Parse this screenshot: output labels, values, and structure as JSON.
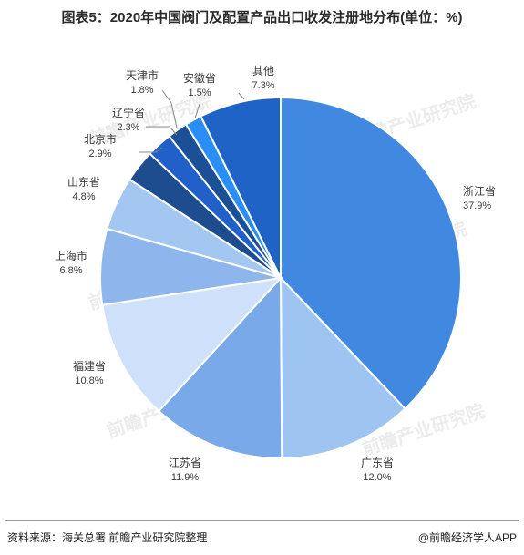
{
  "chart_data": {
    "type": "pie",
    "title": "图表5：2020年中国阀门及配置产品出口收发注册地分布(单位：%)",
    "categories": [
      "浙江省",
      "广东省",
      "江苏省",
      "福建省",
      "上海市",
      "山东省",
      "北京市",
      "辽宁省",
      "天津市",
      "安徽省",
      "其他"
    ],
    "values": [
      37.9,
      12.0,
      11.9,
      10.8,
      6.8,
      4.8,
      2.9,
      2.3,
      1.8,
      1.5,
      7.3
    ],
    "value_labels": [
      "37.9%",
      "12.0%",
      "11.9%",
      "10.8%",
      "6.8%",
      "4.8%",
      "2.9%",
      "2.3%",
      "1.8%",
      "1.5%",
      "7.3%"
    ],
    "colors": [
      "#4189e0",
      "#9ec4f2",
      "#79a9e8",
      "#cfe1fa",
      "#8eb6ec",
      "#a4c7f1",
      "#1e4d8f",
      "#2260c9",
      "#1b4f96",
      "#2a8ef5",
      "#1f63c6"
    ],
    "start_angle_deg": 0,
    "direction": "clockwise"
  },
  "watermark": "前瞻产业研究院",
  "footer": {
    "source": "资料来源：海关总署 前瞻产业研究院整理",
    "credit": "@前瞻经济学人APP"
  }
}
